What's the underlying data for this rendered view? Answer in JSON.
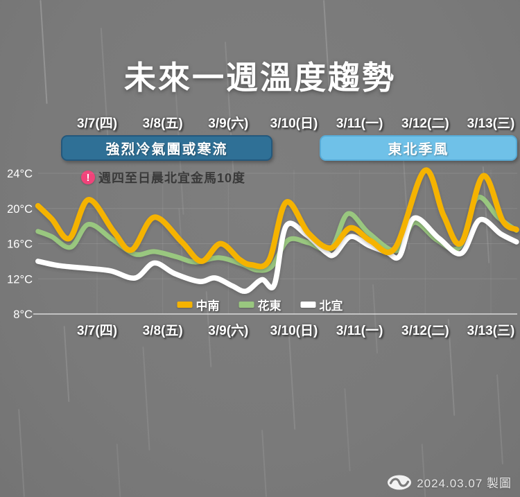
{
  "title": "未來一週溫度趨勢",
  "dates": [
    "3/7(四)",
    "3/8(五)",
    "3/9(六)",
    "3/10(日)",
    "3/11(一)",
    "3/12(二)",
    "3/13(三)"
  ],
  "banners": [
    {
      "label": "強烈冷氣團或寒流",
      "color": "#2F7096"
    },
    {
      "label": "東北季風",
      "color": "#6FC1E8"
    }
  ],
  "note": {
    "icon": "exclamation-circle",
    "icon_color": "#F0437A",
    "text": "週四至日晨北宜金馬10度"
  },
  "footer": {
    "date_text": "2024.03.07 製圖"
  },
  "chart_data": {
    "type": "line",
    "title": "未來一週溫度趨勢",
    "x_categories": [
      "3/7(四)",
      "3/8(五)",
      "3/9(六)",
      "3/10(日)",
      "3/11(一)",
      "3/12(二)",
      "3/13(三)"
    ],
    "x_unit": "day offset from 3/7 label center (1 = one day)",
    "ylabel": "°C",
    "ylim": [
      8,
      25.6
    ],
    "grid": true,
    "legend_position": "bottom-inside",
    "y_ticks": [
      {
        "label": "24°C",
        "value": 24
      },
      {
        "label": "20°C",
        "value": 20
      },
      {
        "label": "16°C",
        "value": 16
      },
      {
        "label": "12°C",
        "value": 12
      },
      {
        "label": "8°C",
        "value": 8
      }
    ],
    "series": [
      {
        "name": "中南",
        "color": "#F5B301",
        "points": [
          [
            -0.9,
            20.3
          ],
          [
            -0.69,
            18.8
          ],
          [
            -0.42,
            16.6
          ],
          [
            -0.13,
            21.0
          ],
          [
            0.26,
            17.3
          ],
          [
            0.53,
            15.3
          ],
          [
            0.87,
            19.0
          ],
          [
            1.29,
            16.2
          ],
          [
            1.59,
            14.0
          ],
          [
            1.88,
            16.0
          ],
          [
            2.17,
            14.2
          ],
          [
            2.35,
            13.6
          ],
          [
            2.62,
            14.1
          ],
          [
            2.88,
            20.7
          ],
          [
            3.22,
            17.2
          ],
          [
            3.56,
            15.5
          ],
          [
            3.86,
            17.8
          ],
          [
            4.17,
            16.3
          ],
          [
            4.54,
            15.5
          ],
          [
            4.99,
            24.3
          ],
          [
            5.28,
            19.2
          ],
          [
            5.55,
            16.1
          ],
          [
            5.88,
            23.7
          ],
          [
            6.18,
            18.6
          ],
          [
            6.39,
            17.6
          ]
        ]
      },
      {
        "name": "花東",
        "color": "#99C77F",
        "points": [
          [
            -0.9,
            17.4
          ],
          [
            -0.69,
            16.8
          ],
          [
            -0.4,
            15.6
          ],
          [
            -0.13,
            18.2
          ],
          [
            0.23,
            16.5
          ],
          [
            0.58,
            14.8
          ],
          [
            0.87,
            15.1
          ],
          [
            1.21,
            14.5
          ],
          [
            1.5,
            13.9
          ],
          [
            1.85,
            14.4
          ],
          [
            2.2,
            13.7
          ],
          [
            2.43,
            13.0
          ],
          [
            2.66,
            13.4
          ],
          [
            2.91,
            16.4
          ],
          [
            3.22,
            16.1
          ],
          [
            3.56,
            15.4
          ],
          [
            3.82,
            19.4
          ],
          [
            4.14,
            17.2
          ],
          [
            4.56,
            15.2
          ],
          [
            4.83,
            18.4
          ],
          [
            5.18,
            16.4
          ],
          [
            5.52,
            15.6
          ],
          [
            5.79,
            21.2
          ],
          [
            6.11,
            19.0
          ],
          [
            6.39,
            17.5
          ]
        ]
      },
      {
        "name": "北宜",
        "color": "#FFFFFF",
        "points": [
          [
            -0.9,
            14.0
          ],
          [
            -0.58,
            13.5
          ],
          [
            -0.16,
            13.2
          ],
          [
            0.21,
            12.9
          ],
          [
            0.58,
            12.1
          ],
          [
            0.87,
            13.8
          ],
          [
            1.18,
            12.6
          ],
          [
            1.56,
            11.7
          ],
          [
            1.8,
            12.1
          ],
          [
            2.06,
            11.2
          ],
          [
            2.27,
            10.6
          ],
          [
            2.51,
            11.9
          ],
          [
            2.7,
            11.3
          ],
          [
            2.88,
            18.0
          ],
          [
            3.19,
            17.0
          ],
          [
            3.49,
            15.0
          ],
          [
            3.62,
            14.8
          ],
          [
            3.86,
            16.8
          ],
          [
            4.14,
            15.8
          ],
          [
            4.42,
            15.0
          ],
          [
            4.61,
            14.6
          ],
          [
            4.83,
            18.9
          ],
          [
            5.21,
            16.6
          ],
          [
            5.55,
            14.9
          ],
          [
            5.83,
            18.7
          ],
          [
            6.15,
            17.1
          ],
          [
            6.39,
            16.2
          ]
        ]
      }
    ],
    "annotations": [
      {
        "text": "強烈冷氣團或寒流",
        "span_days": "3/7-3/9"
      },
      {
        "text": "東北季風",
        "span_days": "3/11-3/13"
      },
      {
        "text": "週四至日晨北宜金馬10度"
      }
    ]
  }
}
